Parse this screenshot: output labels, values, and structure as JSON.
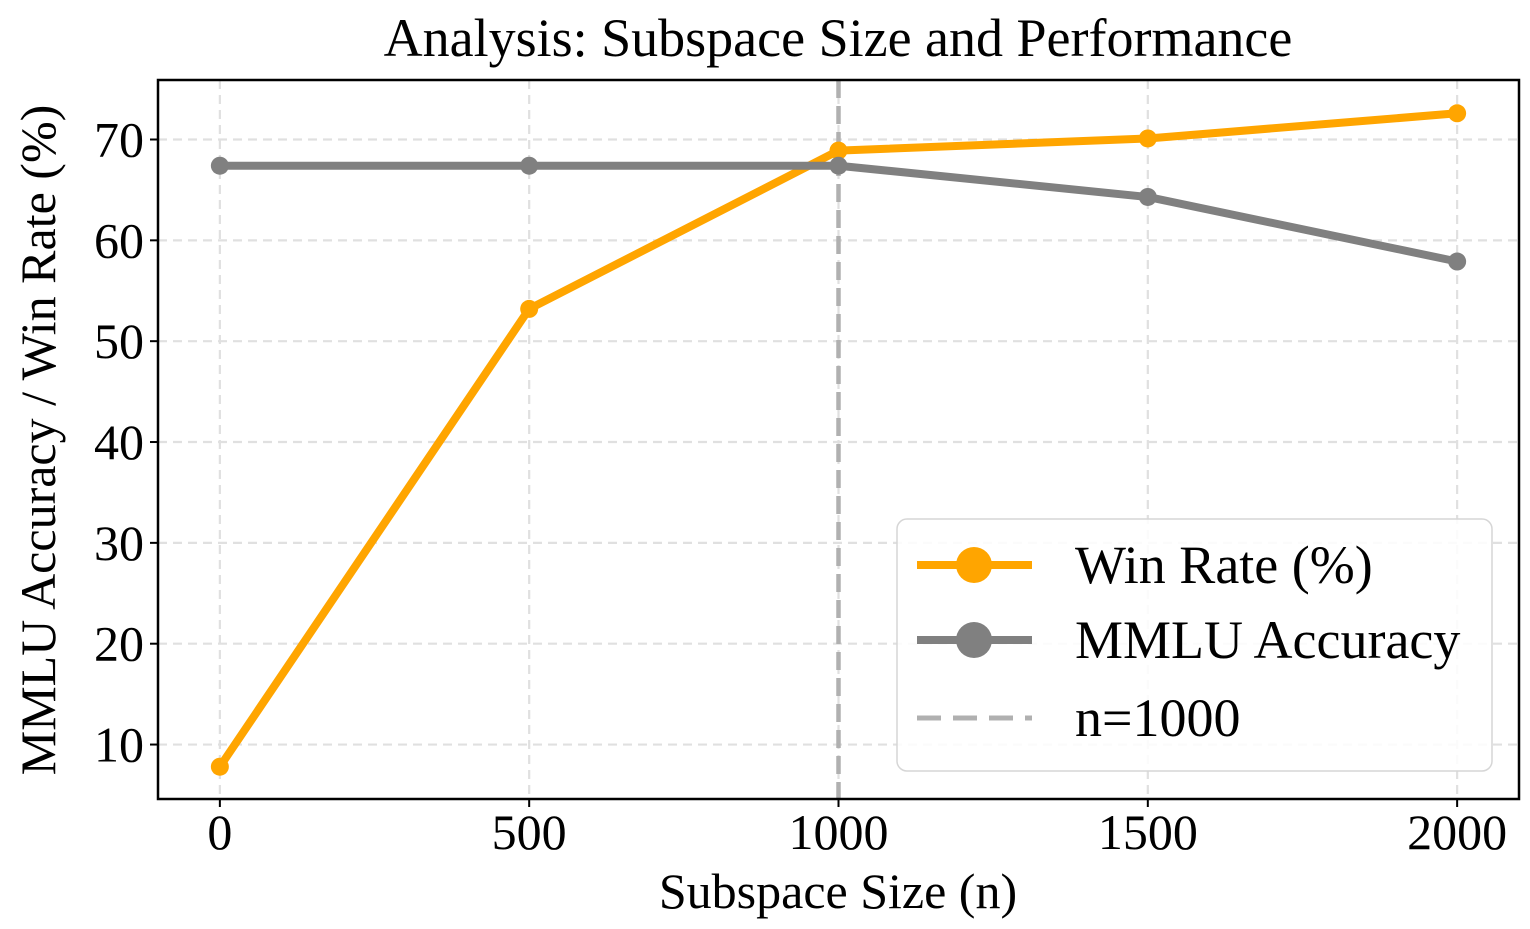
{
  "chart_data": {
    "type": "line",
    "title": "Analysis: Subspace Size and Performance",
    "xlabel": "Subspace Size (n)",
    "ylabel": "MMLU Accuracy / Win Rate (%)",
    "x": [
      0,
      500,
      1000,
      1500,
      2000
    ],
    "xticks": [
      "0",
      "500",
      "1000",
      "1500",
      "2000"
    ],
    "yticks": [
      "10",
      "20",
      "30",
      "40",
      "50",
      "60",
      "70"
    ],
    "xlim": [
      -100,
      2100
    ],
    "ylim": [
      4.6,
      75.9
    ],
    "grid": true,
    "legend_position": "bottom-right",
    "series": [
      {
        "name": "Win Rate (%)",
        "color": "#ffa500",
        "values": [
          7.8,
          53.2,
          68.9,
          70.1,
          72.6
        ]
      },
      {
        "name": "MMLU Accuracy",
        "color": "#808080",
        "values": [
          67.4,
          67.4,
          67.4,
          64.3,
          57.9
        ]
      }
    ],
    "reference_line": {
      "name": "n=1000",
      "x": 1000,
      "color": "#b0b0b0",
      "style": "dashed"
    }
  }
}
